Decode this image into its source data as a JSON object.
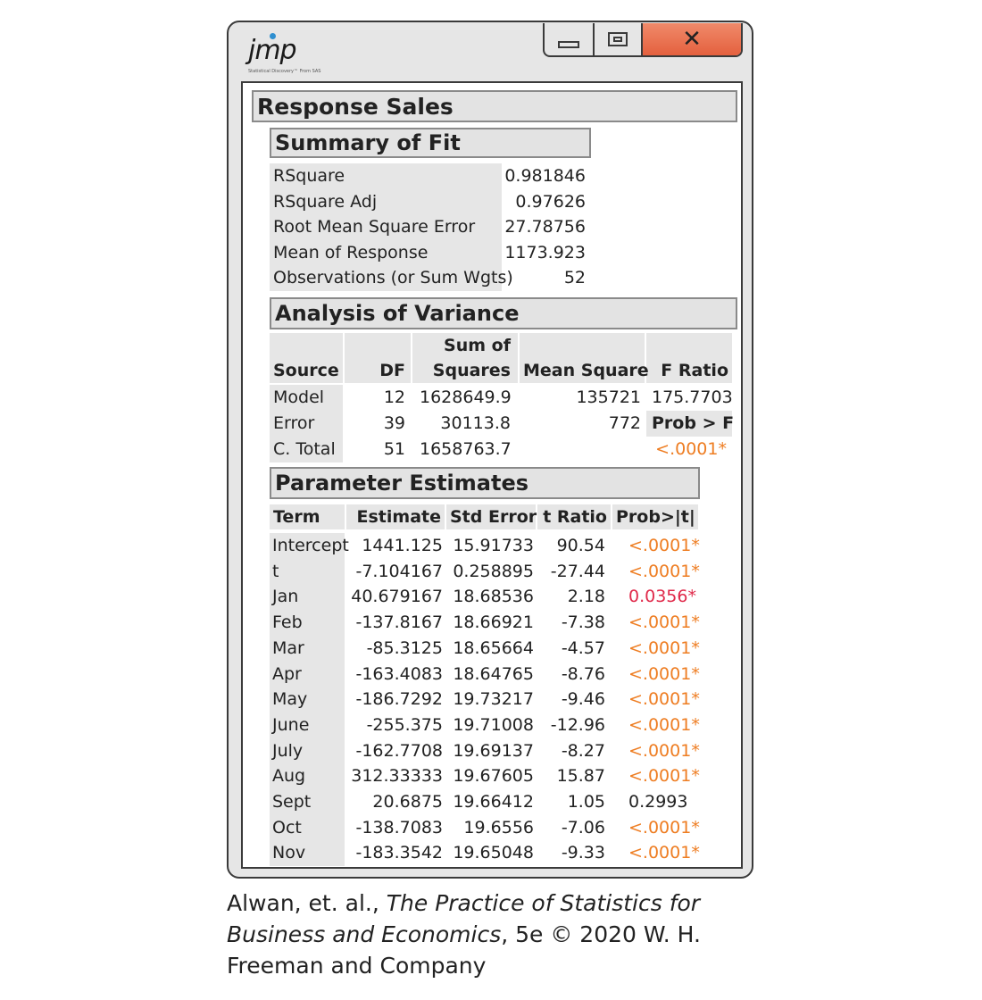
{
  "window": {
    "logo_text": "jmp",
    "logo_tagline": "Statistical Discovery™ From SAS",
    "controls": {
      "minimize": "minimize",
      "maximize": "maximize",
      "close": "close"
    }
  },
  "report": {
    "title": "Response Sales",
    "summary": {
      "title": "Summary of Fit",
      "rows": [
        {
          "label": "RSquare",
          "value": "0.981846"
        },
        {
          "label": "RSquare Adj",
          "value": "0.97626"
        },
        {
          "label": "Root Mean Square Error",
          "value": "27.78756"
        },
        {
          "label": "Mean of Response",
          "value": "1173.923"
        },
        {
          "label": "Observations (or Sum Wgts)",
          "value": "52"
        }
      ]
    },
    "anova": {
      "title": "Analysis of Variance",
      "headers": {
        "source": "Source",
        "df": "DF",
        "ss_top": "Sum of",
        "ss_bottom": "Squares",
        "ms": "Mean Square",
        "f": "F Ratio"
      },
      "rows": [
        {
          "source": "Model",
          "df": "12",
          "ss": "1628649.9",
          "ms": "135721",
          "extra": "175.7703"
        },
        {
          "source": "Error",
          "df": "39",
          "ss": "30113.8",
          "ms": "772",
          "extra": "Prob > F"
        },
        {
          "source": "C. Total",
          "df": "51",
          "ss": "1658763.7",
          "ms": "",
          "extra": "<.0001*"
        }
      ]
    },
    "params": {
      "title": "Parameter Estimates",
      "headers": {
        "term": "Term",
        "estimate": "Estimate",
        "stderr": "Std Error",
        "tratio": "t Ratio",
        "prob": "Prob>|t|"
      },
      "rows": [
        {
          "term": "Intercept",
          "estimate": "1441.125",
          "stderr": "15.91733",
          "tratio": "90.54",
          "prob": "<.0001*",
          "color": "#ee7d22"
        },
        {
          "term": "t",
          "estimate": "-7.104167",
          "stderr": "0.258895",
          "tratio": "-27.44",
          "prob": "<.0001*",
          "color": "#ee7d22"
        },
        {
          "term": "Jan",
          "estimate": "40.679167",
          "stderr": "18.68536",
          "tratio": "2.18",
          "prob": "0.0356*",
          "color": "#e0294a"
        },
        {
          "term": "Feb",
          "estimate": "-137.8167",
          "stderr": "18.66921",
          "tratio": "-7.38",
          "prob": "<.0001*",
          "color": "#ee7d22"
        },
        {
          "term": "Mar",
          "estimate": "-85.3125",
          "stderr": "18.65664",
          "tratio": "-4.57",
          "prob": "<.0001*",
          "color": "#ee7d22"
        },
        {
          "term": "Apr",
          "estimate": "-163.4083",
          "stderr": "18.64765",
          "tratio": "-8.76",
          "prob": "<.0001*",
          "color": "#ee7d22"
        },
        {
          "term": "May",
          "estimate": "-186.7292",
          "stderr": "19.73217",
          "tratio": "-9.46",
          "prob": "<.0001*",
          "color": "#ee7d22"
        },
        {
          "term": "June",
          "estimate": "-255.375",
          "stderr": "19.71008",
          "tratio": "-12.96",
          "prob": "<.0001*",
          "color": "#ee7d22"
        },
        {
          "term": "July",
          "estimate": "-162.7708",
          "stderr": "19.69137",
          "tratio": "-8.27",
          "prob": "<.0001*",
          "color": "#ee7d22"
        },
        {
          "term": "Aug",
          "estimate": "312.33333",
          "stderr": "19.67605",
          "tratio": "15.87",
          "prob": "<.0001*",
          "color": "#ee7d22"
        },
        {
          "term": "Sept",
          "estimate": "20.6875",
          "stderr": "19.66412",
          "tratio": "1.05",
          "prob": "0.2993",
          "color": "#222222"
        },
        {
          "term": "Oct",
          "estimate": "-138.7083",
          "stderr": "19.6556",
          "tratio": "-7.06",
          "prob": "<.0001*",
          "color": "#ee7d22"
        },
        {
          "term": "Nov",
          "estimate": "-183.3542",
          "stderr": "19.65048",
          "tratio": "-9.33",
          "prob": "<.0001*",
          "color": "#ee7d22"
        }
      ]
    }
  },
  "caption": {
    "part1": "Alwan, et. al., ",
    "book": "The Practice of Statistics for Business and Economics",
    "part2": ", 5e © 2020 W. H. Freeman and Company"
  }
}
